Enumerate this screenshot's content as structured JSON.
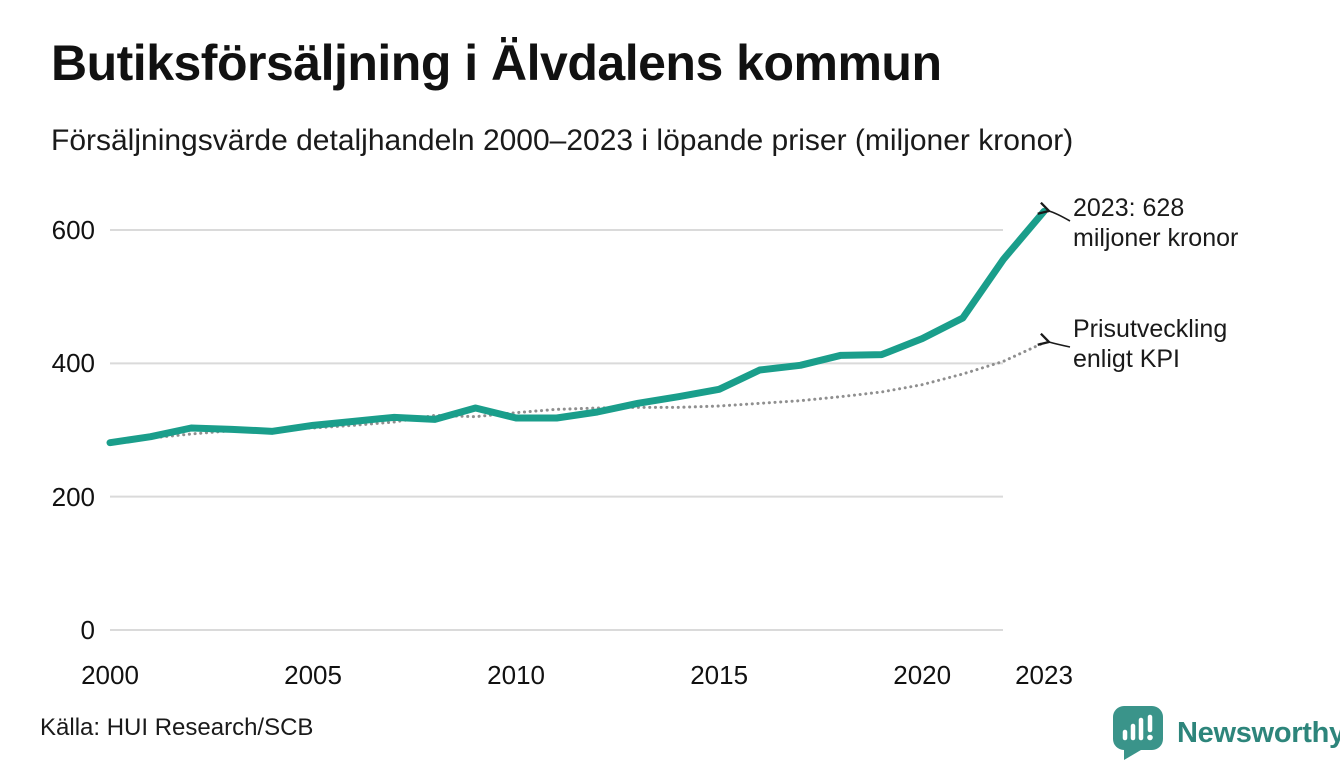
{
  "header": {
    "title": "Butiksförsäljning i Älvdalens kommun",
    "subtitle": "Försäljningsvärde detaljhandeln 2000–2023 i löpande priser (miljoner kronor)"
  },
  "chart_data": {
    "type": "line",
    "x": [
      2000,
      2001,
      2002,
      2003,
      2004,
      2005,
      2006,
      2007,
      2008,
      2009,
      2010,
      2011,
      2012,
      2013,
      2014,
      2015,
      2016,
      2017,
      2018,
      2019,
      2020,
      2021,
      2022,
      2023
    ],
    "series": [
      {
        "name": "Butiksförsäljning (löpande priser)",
        "style": "solid",
        "color": "#1a9e8b",
        "values": [
          281,
          290,
          303,
          301,
          298,
          307,
          313,
          319,
          316,
          333,
          318,
          318,
          327,
          340,
          350,
          361,
          390,
          397,
          412,
          413,
          437,
          468,
          556,
          628
        ]
      },
      {
        "name": "Prisutveckling enligt KPI",
        "style": "dotted",
        "color": "#8f8f8f",
        "values": [
          281,
          288,
          294,
          299,
          301,
          303,
          307,
          312,
          322,
          320,
          326,
          331,
          333,
          334,
          334,
          336,
          340,
          344,
          350,
          357,
          368,
          384,
          403,
          431
        ]
      }
    ],
    "xlabel": "",
    "ylabel": "miljoner kronor",
    "ylim": [
      0,
      650
    ],
    "xlim": [
      2000,
      2023
    ],
    "y_ticks": [
      0,
      200,
      400,
      600
    ],
    "x_ticks": [
      2000,
      2005,
      2010,
      2015,
      2020,
      2023
    ],
    "grid": "horizontal",
    "legend_position": "none",
    "annotations": [
      {
        "target": "solid-line-end",
        "line1": "2023: 628",
        "line2": "miljoner kronor"
      },
      {
        "target": "dotted-line-end",
        "line1": "Prisutveckling",
        "line2": "enligt KPI"
      }
    ]
  },
  "footer": {
    "source": "Källa: HUI Research/SCB",
    "brand": "Newsworthy"
  },
  "colors": {
    "line": "#1a9e8b",
    "kpi_dots": "#8f8f8f",
    "gridline": "#dadada",
    "text": "#1a1a1a",
    "brand_teal": "#2d857b",
    "logo_teal": "#3a948a"
  }
}
